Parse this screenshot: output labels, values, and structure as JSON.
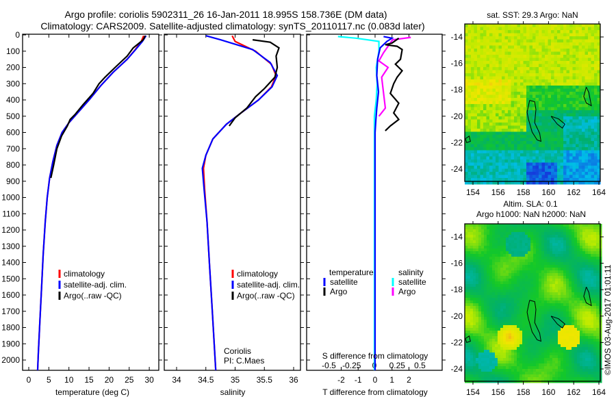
{
  "header": {
    "title_line1": "Argo profile: coriolis 5902311_26 16-Jan-2011 18.995S 158.736E (DM data)",
    "title_line2": "Climatology: CARS2009. Satellite-adjusted climatology: synTS_20110117.nc (0.083d later)"
  },
  "colors": {
    "climatology": "#ff0000",
    "satellite": "#0000ff",
    "argo": "#000000",
    "sal_satellite": "#00ffff",
    "sal_argo": "#ff00ff"
  },
  "legend": {
    "climatology": "climatology",
    "satellite": "satellite-adj. clim.",
    "argo": "Argo(..raw -QC)"
  },
  "institution": {
    "name": "Coriolis",
    "pi": "PI: C.Maes"
  },
  "diff_legend": {
    "temperature": "temperature",
    "salinity": "salinity",
    "satellite": "satellite",
    "argo": "Argo"
  },
  "copyright": "©IMOS 03-Aug-2017 01:01:11",
  "chart_data": [
    {
      "type": "line",
      "name": "temperature-profile",
      "xlabel": "temperature (deg C)",
      "xticks": [
        0,
        5,
        10,
        15,
        20,
        25,
        30
      ],
      "yticks": [
        0,
        100,
        200,
        300,
        400,
        500,
        600,
        700,
        800,
        900,
        1000,
        1100,
        1200,
        1300,
        1400,
        1500,
        1600,
        1700,
        1800,
        1900,
        2000
      ],
      "xlim": [
        -1.5,
        32
      ],
      "ylim": [
        2070,
        0
      ],
      "series": [
        {
          "name": "climatology",
          "points": [
            [
              28.6,
              5
            ],
            [
              28,
              40
            ],
            [
              26.5,
              90
            ],
            [
              24.5,
              150
            ],
            [
              21,
              230
            ],
            [
              18,
              310
            ],
            [
              15,
              400
            ],
            [
              12.5,
              470
            ],
            [
              10,
              540
            ],
            [
              8.3,
              600
            ],
            [
              7,
              680
            ],
            [
              6,
              780
            ],
            [
              5.2,
              880
            ],
            [
              4.6,
              1000
            ],
            [
              4.1,
              1150
            ],
            [
              3.6,
              1350
            ],
            [
              3.2,
              1550
            ],
            [
              2.8,
              1750
            ],
            [
              2.4,
              1950
            ],
            [
              2.2,
              2070
            ]
          ]
        },
        {
          "name": "satellite",
          "points": [
            [
              29.2,
              5
            ],
            [
              28.3,
              40
            ],
            [
              26.6,
              90
            ],
            [
              24.5,
              150
            ],
            [
              21,
              230
            ],
            [
              18,
              310
            ],
            [
              15,
              400
            ],
            [
              12.5,
              470
            ],
            [
              10,
              540
            ],
            [
              8.3,
              600
            ],
            [
              7,
              680
            ],
            [
              6,
              780
            ],
            [
              5.2,
              880
            ],
            [
              4.6,
              1000
            ],
            [
              4.1,
              1150
            ],
            [
              3.6,
              1350
            ],
            [
              3.2,
              1550
            ],
            [
              2.8,
              1750
            ],
            [
              2.4,
              1950
            ],
            [
              2.2,
              2070
            ]
          ]
        },
        {
          "name": "argo",
          "points": [
            [
              29,
              5
            ],
            [
              28.5,
              30
            ],
            [
              26,
              80
            ],
            [
              24.5,
              130
            ],
            [
              21.5,
              200
            ],
            [
              19,
              260
            ],
            [
              17.5,
              300
            ],
            [
              16,
              360
            ],
            [
              13.5,
              430
            ],
            [
              11.5,
              490
            ],
            [
              10.3,
              520
            ],
            [
              9.6,
              560
            ],
            [
              8.2,
              620
            ],
            [
              7,
              700
            ],
            [
              6.2,
              800
            ],
            [
              5.5,
              880
            ]
          ]
        }
      ]
    },
    {
      "type": "line",
      "name": "salinity-profile",
      "xlabel": "salinity",
      "xticks": [
        34,
        34.5,
        35,
        35.5,
        36
      ],
      "xlim": [
        33.79,
        36.1
      ],
      "ylim": [
        2070,
        0
      ],
      "series": [
        {
          "name": "climatology",
          "points": [
            [
              34.95,
              5
            ],
            [
              35.0,
              40
            ],
            [
              35.35,
              100
            ],
            [
              35.62,
              180
            ],
            [
              35.7,
              250
            ],
            [
              35.62,
              320
            ],
            [
              35.4,
              400
            ],
            [
              35.1,
              480
            ],
            [
              34.85,
              550
            ],
            [
              34.62,
              640
            ],
            [
              34.5,
              740
            ],
            [
              34.46,
              820
            ],
            [
              34.48,
              950
            ],
            [
              34.52,
              1150
            ],
            [
              34.56,
              1400
            ],
            [
              34.61,
              1700
            ],
            [
              34.67,
              2070
            ]
          ]
        },
        {
          "name": "satellite",
          "points": [
            [
              34.5,
              5
            ],
            [
              34.75,
              30
            ],
            [
              35.3,
              90
            ],
            [
              35.6,
              170
            ],
            [
              35.72,
              250
            ],
            [
              35.63,
              320
            ],
            [
              35.4,
              400
            ],
            [
              35.1,
              480
            ],
            [
              34.85,
              550
            ],
            [
              34.62,
              640
            ],
            [
              34.5,
              740
            ],
            [
              34.44,
              820
            ],
            [
              34.47,
              950
            ],
            [
              34.52,
              1150
            ],
            [
              34.56,
              1400
            ],
            [
              34.61,
              1700
            ],
            [
              34.67,
              2070
            ]
          ]
        },
        {
          "name": "argo",
          "points": [
            [
              35.3,
              30
            ],
            [
              35.6,
              45
            ],
            [
              35.75,
              80
            ],
            [
              35.7,
              130
            ],
            [
              35.72,
              200
            ],
            [
              35.68,
              260
            ],
            [
              35.5,
              330
            ],
            [
              35.35,
              380
            ],
            [
              35.2,
              450
            ],
            [
              35.0,
              510
            ],
            [
              34.9,
              560
            ]
          ]
        }
      ]
    },
    {
      "type": "line",
      "name": "difference-profile",
      "xlabel": "T difference from climatology",
      "s_label": "S difference from climatology",
      "xticks": [
        -2,
        -1,
        0,
        1,
        2
      ],
      "s_ticks": [
        "-0.5",
        "-0.25",
        "0",
        "0.25",
        "0.5"
      ],
      "xlim": [
        -2.7,
        3
      ],
      "ylim": [
        2070,
        0
      ],
      "series": [
        {
          "name": "temperature satellite",
          "axis": "T",
          "points": [
            [
              0.5,
              10
            ],
            [
              1.0,
              20
            ],
            [
              0.7,
              40
            ],
            [
              0.3,
              80
            ],
            [
              0.15,
              150
            ],
            [
              0.1,
              250
            ],
            [
              0.2,
              350
            ],
            [
              0.1,
              450
            ],
            [
              0.05,
              520
            ],
            [
              0,
              600
            ],
            [
              0,
              1000
            ],
            [
              0,
              2070
            ]
          ]
        },
        {
          "name": "temperature Argo",
          "axis": "T",
          "points": [
            [
              1.4,
              20
            ],
            [
              1.0,
              50
            ],
            [
              0.6,
              60
            ],
            [
              1.3,
              70
            ],
            [
              1.6,
              90
            ],
            [
              1.5,
              150
            ],
            [
              1.2,
              180
            ],
            [
              1.6,
              220
            ],
            [
              1.3,
              260
            ],
            [
              1.1,
              300
            ],
            [
              0.9,
              360
            ],
            [
              1.4,
              420
            ],
            [
              1.1,
              480
            ],
            [
              1.4,
              520
            ],
            [
              0.9,
              560
            ],
            [
              0.6,
              590
            ]
          ]
        },
        {
          "name": "salinity satellite",
          "axis": "S",
          "points": [
            [
              -0.4,
              10
            ],
            [
              -0.2,
              20
            ],
            [
              0.05,
              40
            ],
            [
              0.05,
              100
            ],
            [
              0.02,
              200
            ],
            [
              0.03,
              300
            ],
            [
              0.02,
              400
            ],
            [
              0,
              500
            ],
            [
              0,
              800
            ],
            [
              0,
              1500
            ],
            [
              0,
              2070
            ]
          ]
        },
        {
          "name": "salinity Argo",
          "axis": "S",
          "points": [
            [
              0.4,
              15
            ],
            [
              0.2,
              30
            ],
            [
              0.1,
              110
            ],
            [
              0.05,
              160
            ],
            [
              0.15,
              200
            ],
            [
              0.08,
              260
            ],
            [
              0.12,
              450
            ],
            [
              0.05,
              500
            ]
          ]
        }
      ]
    },
    {
      "type": "heatmap",
      "name": "sst-map",
      "title": "sat. SST: 29.3 Argo: NaN",
      "xticks": [
        154,
        156,
        158,
        160,
        162,
        164
      ],
      "yticks": [
        -14,
        -16,
        -18,
        -20,
        -22,
        -24
      ]
    },
    {
      "type": "heatmap",
      "name": "sla-map",
      "title1": "Altim. SLA: 0.1",
      "title2": "Argo h1000: NaN h2000: NaN",
      "xticks": [
        154,
        156,
        158,
        160,
        162,
        164
      ],
      "yticks": [
        -14,
        -16,
        -18,
        -20,
        -22,
        -24
      ]
    }
  ]
}
